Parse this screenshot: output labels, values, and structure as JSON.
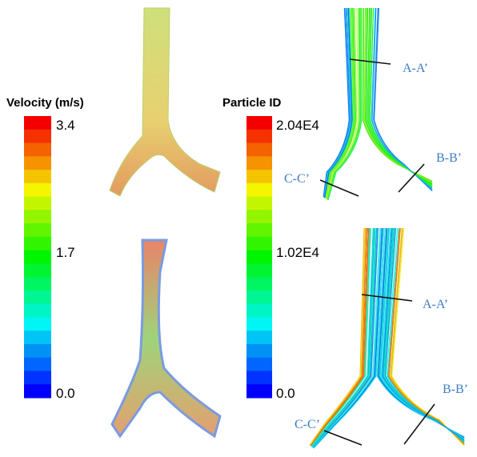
{
  "velocity_legend": {
    "title": "Velocity (m/s)",
    "labels": [
      "3.4",
      "1.7",
      "0.0"
    ]
  },
  "particle_legend": {
    "title": "Particle ID",
    "labels": [
      "2.04E4",
      "1.02E4",
      "0.0"
    ]
  },
  "top_sections": {
    "a": "A-A’",
    "b": "B-B’",
    "c": "C-C’"
  },
  "bottom_sections": {
    "a": "A-A’",
    "b": "B-B’",
    "c": "C-C’"
  }
}
